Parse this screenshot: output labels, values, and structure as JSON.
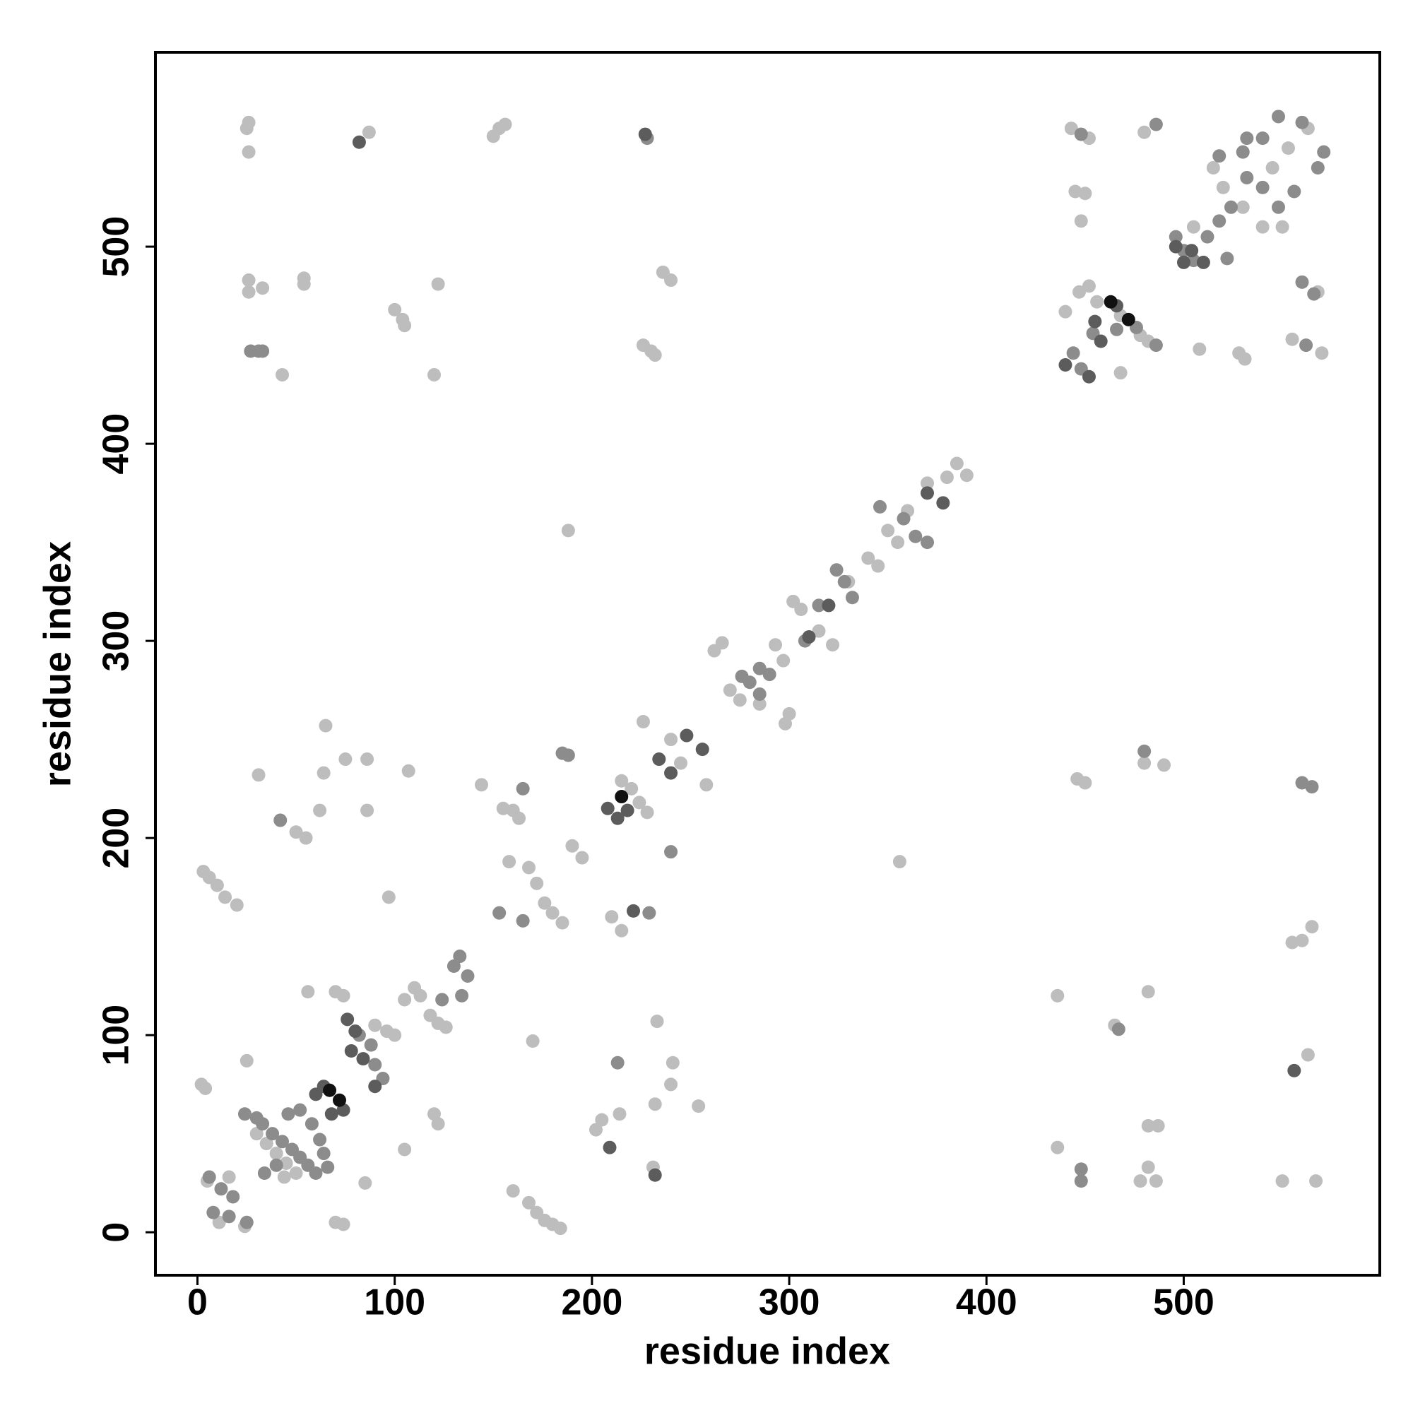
{
  "chart_data": {
    "type": "scatter",
    "xlabel": "residue index",
    "ylabel": "residue index",
    "xlim": [
      -21.3,
      599.4
    ],
    "ylim": [
      -21.8,
      598.6
    ],
    "xticks": [
      0,
      100,
      200,
      300,
      400,
      500
    ],
    "yticks": [
      0,
      100,
      200,
      300,
      400,
      500
    ],
    "grid": false,
    "series": [
      {
        "color": "#bdbdbd",
        "x": [
          25,
          26,
          26,
          87,
          150,
          153,
          156,
          26,
          26,
          33,
          54,
          54,
          100,
          104,
          105,
          122,
          43,
          120,
          226,
          230,
          232,
          236,
          240,
          188,
          155,
          160,
          163,
          158,
          168,
          172,
          176,
          180,
          185,
          190,
          195,
          215,
          220,
          224,
          228,
          240,
          245,
          258,
          226,
          262,
          266,
          270,
          275,
          285,
          293,
          297,
          298,
          300,
          302,
          306,
          315,
          322,
          330,
          340,
          345,
          350,
          355,
          360,
          370,
          380,
          385,
          390,
          3,
          6,
          10,
          14,
          20,
          2,
          4,
          25,
          56,
          70,
          74,
          90,
          96,
          100,
          105,
          110,
          113,
          118,
          122,
          126,
          120,
          122,
          105,
          70,
          74,
          85,
          30,
          35,
          40,
          45,
          50,
          44,
          5,
          11,
          16,
          24,
          160,
          168,
          172,
          176,
          180,
          184,
          170,
          202,
          205,
          214,
          232,
          233,
          240,
          241,
          254,
          231,
          55,
          50,
          62,
          86,
          64,
          75,
          86,
          107,
          31,
          97,
          144,
          65,
          215,
          210,
          440,
          445,
          448,
          450,
          443,
          452,
          480,
          447,
          452,
          456,
          468,
          478,
          482,
          468,
          446,
          450,
          480,
          490,
          356,
          436,
          465,
          482,
          482,
          487,
          478,
          482,
          486,
          436,
          550,
          567,
          563,
          560,
          565,
          555,
          508,
          528,
          531,
          545,
          553,
          563,
          540,
          550,
          520,
          530,
          515,
          505,
          568,
          570,
          555
        ],
        "values": [
          560,
          563,
          548,
          558,
          556,
          560,
          562,
          483,
          477,
          479,
          484,
          481,
          468,
          463,
          460,
          481,
          435,
          435,
          450,
          447,
          445,
          487,
          483,
          356,
          215,
          214,
          210,
          188,
          185,
          177,
          167,
          162,
          157,
          196,
          190,
          229,
          225,
          218,
          213,
          250,
          238,
          227,
          259,
          295,
          299,
          275,
          270,
          268,
          298,
          290,
          258,
          263,
          320,
          316,
          305,
          298,
          330,
          342,
          338,
          356,
          350,
          366,
          380,
          383,
          390,
          384,
          183,
          180,
          176,
          170,
          166,
          75,
          73,
          87,
          122,
          122,
          120,
          105,
          102,
          100,
          118,
          124,
          120,
          110,
          106,
          104,
          60,
          55,
          42,
          5,
          4,
          25,
          50,
          45,
          40,
          35,
          30,
          28,
          26,
          5,
          28,
          3,
          21,
          15,
          10,
          6,
          4,
          2,
          97,
          52,
          57,
          60,
          65,
          107,
          75,
          86,
          64,
          33,
          200,
          203,
          214,
          214,
          233,
          240,
          240,
          234,
          232,
          170,
          227,
          257,
          153,
          160,
          467,
          528,
          513,
          527,
          560,
          555,
          558,
          477,
          480,
          472,
          465,
          455,
          452,
          436,
          230,
          228,
          238,
          237,
          188,
          120,
          105,
          122,
          54,
          54,
          26,
          33,
          26,
          43,
          26,
          26,
          90,
          148,
          155,
          147,
          448,
          446,
          443,
          540,
          550,
          560,
          510,
          510,
          530,
          520,
          540,
          510,
          477,
          446,
          453
        ]
      },
      {
        "color": "#8c8c8c",
        "x": [
          27,
          31,
          33,
          228,
          42,
          185,
          188,
          24,
          30,
          33,
          38,
          43,
          48,
          52,
          56,
          60,
          46,
          52,
          58,
          62,
          64,
          66,
          34,
          40,
          82,
          88,
          90,
          94,
          6,
          12,
          18,
          8,
          16,
          25,
          130,
          133,
          137,
          134,
          124,
          165,
          153,
          165,
          213,
          229,
          240,
          276,
          280,
          285,
          290,
          285,
          308,
          315,
          324,
          328,
          332,
          346,
          358,
          364,
          370,
          444,
          448,
          454,
          466,
          476,
          486,
          480,
          560,
          565,
          448,
          448,
          467,
          448,
          486,
          496,
          500,
          505,
          512,
          518,
          524,
          532,
          540,
          548,
          518,
          530,
          540,
          548,
          560,
          522,
          532,
          556,
          560,
          566,
          562,
          568,
          571
        ],
        "values": [
          447,
          447,
          447,
          555,
          209,
          243,
          242,
          60,
          58,
          55,
          50,
          46,
          42,
          38,
          34,
          30,
          60,
          62,
          55,
          47,
          40,
          33,
          30,
          34,
          100,
          95,
          85,
          78,
          28,
          22,
          18,
          10,
          8,
          5,
          135,
          140,
          130,
          120,
          118,
          225,
          162,
          158,
          86,
          162,
          193,
          282,
          279,
          286,
          283,
          273,
          300,
          318,
          336,
          330,
          322,
          368,
          362,
          353,
          350,
          446,
          438,
          456,
          458,
          459,
          450,
          244,
          228,
          226,
          32,
          26,
          103,
          557,
          562,
          505,
          498,
          493,
          505,
          513,
          520,
          535,
          530,
          520,
          546,
          548,
          555,
          566,
          563,
          494,
          555,
          528,
          482,
          476,
          450,
          540,
          548
        ]
      },
      {
        "color": "#5c5c5c",
        "x": [
          82,
          227,
          68,
          74,
          60,
          64,
          78,
          84,
          80,
          76,
          90,
          209,
          232,
          221,
          208,
          213,
          218,
          234,
          240,
          248,
          256,
          310,
          320,
          370,
          378,
          452,
          440,
          458,
          466,
          500,
          496,
          504,
          510,
          556,
          455
        ],
        "values": [
          553,
          557,
          60,
          62,
          70,
          74,
          92,
          88,
          102,
          108,
          74,
          43,
          29,
          163,
          215,
          210,
          214,
          240,
          233,
          252,
          245,
          302,
          318,
          375,
          370,
          434,
          440,
          452,
          470,
          492,
          500,
          498,
          492,
          82,
          462
        ]
      },
      {
        "color": "#111111",
        "x": [
          67,
          72,
          463,
          472,
          215
        ],
        "values": [
          72,
          67,
          472,
          463,
          221
        ]
      }
    ]
  }
}
